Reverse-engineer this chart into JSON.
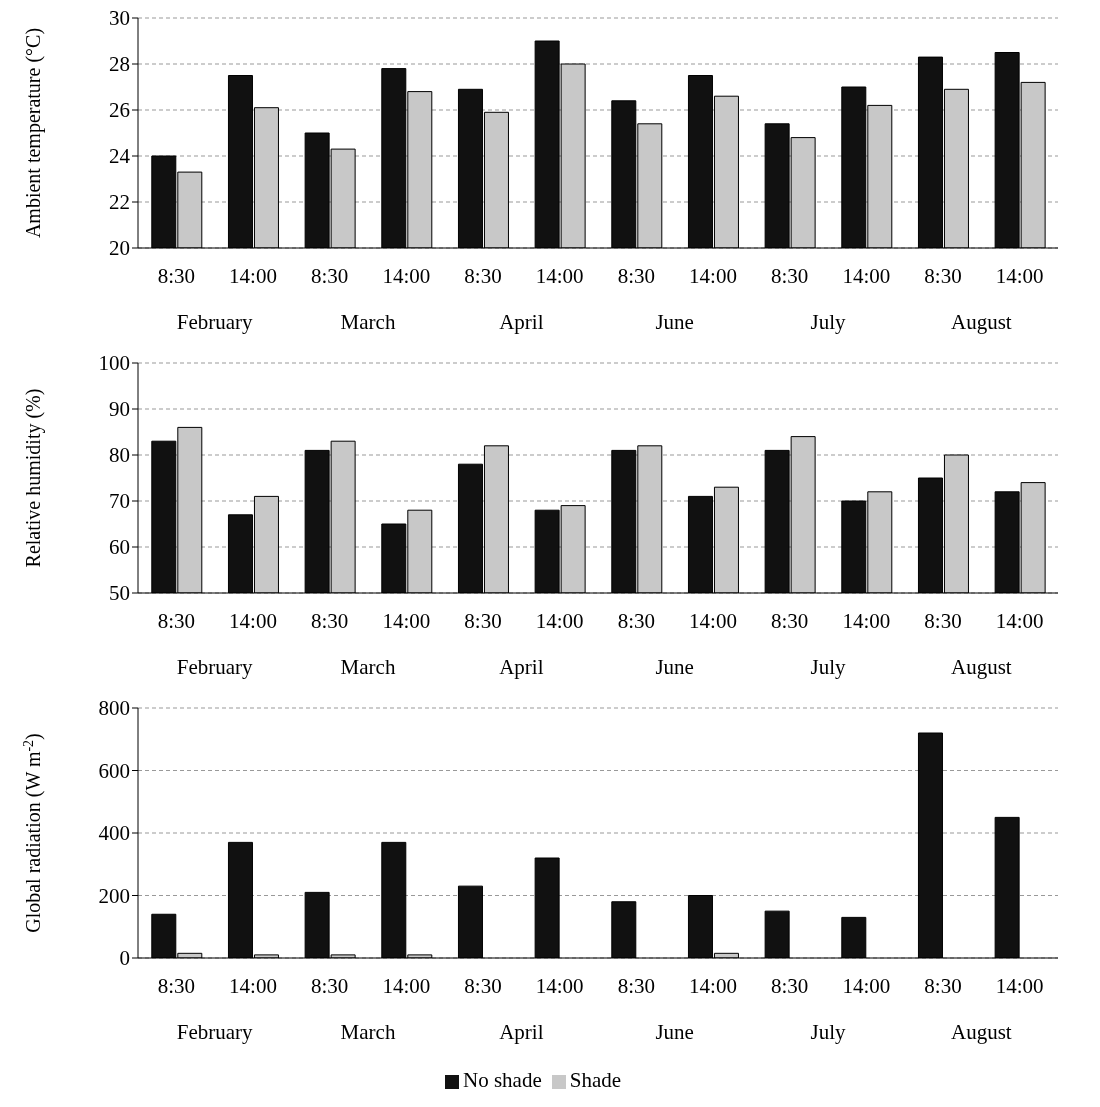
{
  "chart_data": [
    {
      "type": "bar",
      "ylabel": "Ambient temperature (°C)",
      "categories": [
        "8:30",
        "14:00",
        "8:30",
        "14:00",
        "8:30",
        "14:00",
        "8:30",
        "14:00",
        "8:30",
        "14:00",
        "8:30",
        "14:00"
      ],
      "annotations": [
        "February",
        "March",
        "April",
        "June",
        "July",
        "August"
      ],
      "series": [
        {
          "color": "#111111",
          "values": [
            24.0,
            27.5,
            25.0,
            27.8,
            26.9,
            29.0,
            26.4,
            27.5,
            25.4,
            27.0,
            28.3,
            28.5
          ]
        },
        {
          "color": "#c8c8c8",
          "values": [
            23.3,
            26.1,
            24.3,
            26.8,
            25.9,
            28.0,
            25.4,
            26.6,
            24.8,
            26.2,
            26.9,
            27.2
          ]
        }
      ],
      "ylim": [
        20,
        30
      ],
      "yticks": [
        20,
        22,
        24,
        26,
        28,
        30
      ],
      "grid": "y",
      "legend": false
    },
    {
      "type": "bar",
      "ylabel": "Relative humidity (%)",
      "categories": [
        "8:30",
        "14:00",
        "8:30",
        "14:00",
        "8:30",
        "14:00",
        "8:30",
        "14:00",
        "8:30",
        "14:00",
        "8:30",
        "14:00"
      ],
      "annotations": [
        "February",
        "March",
        "April",
        "June",
        "July",
        "August"
      ],
      "series": [
        {
          "color": "#111111",
          "values": [
            83,
            67,
            81,
            65,
            78,
            68,
            81,
            71,
            81,
            70,
            75,
            72
          ]
        },
        {
          "color": "#c8c8c8",
          "values": [
            86,
            71,
            83,
            68,
            82,
            69,
            82,
            73,
            84,
            72,
            80,
            74
          ]
        }
      ],
      "ylim": [
        50,
        100
      ],
      "yticks": [
        50,
        60,
        70,
        80,
        90,
        100
      ],
      "grid": "y",
      "legend": false
    },
    {
      "type": "bar",
      "ylabel": "Global radiation (W m$^{-2}$)",
      "categories": [
        "8:30",
        "14:00",
        "8:30",
        "14:00",
        "8:30",
        "14:00",
        "8:30",
        "14:00",
        "8:30",
        "14:00",
        "8:30",
        "14:00"
      ],
      "annotations": [
        "February",
        "March",
        "April",
        "June",
        "July",
        "August"
      ],
      "series": [
        {
          "name": "No shade",
          "color": "#111111",
          "values": [
            140,
            370,
            210,
            370,
            230,
            320,
            180,
            200,
            150,
            130,
            720,
            450
          ]
        },
        {
          "name": "Shade",
          "color": "#c8c8c8",
          "values": [
            15,
            10,
            10,
            10,
            0,
            0,
            0,
            15,
            0,
            0,
            0,
            0
          ]
        }
      ],
      "ylim": [
        0,
        800
      ],
      "yticks": [
        0,
        200,
        400,
        600,
        800
      ],
      "grid": "y",
      "legend": "bottom"
    }
  ]
}
